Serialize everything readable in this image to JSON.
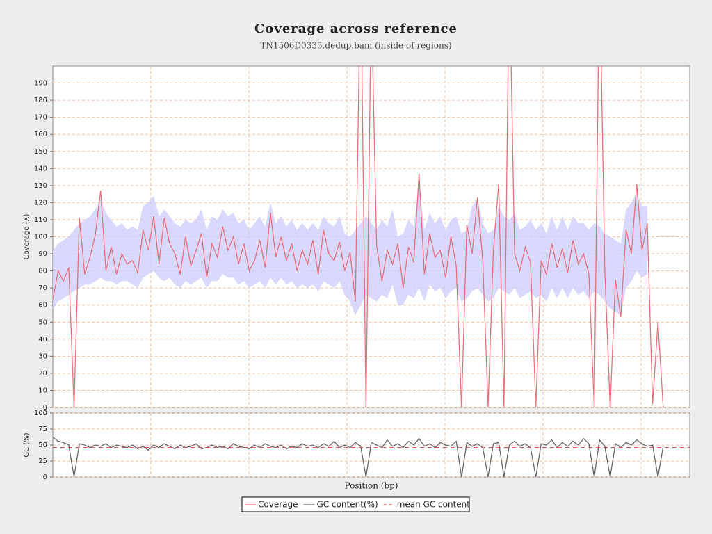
{
  "chart_data": [
    {
      "type": "line",
      "title": "Coverage across reference",
      "subtitle": "TN1506D0335.dedup.bam (inside of regions)",
      "ylabel": "Coverage (X)",
      "ylim": [
        0,
        200
      ],
      "yticks": [
        0,
        10,
        20,
        30,
        40,
        50,
        60,
        70,
        80,
        90,
        100,
        110,
        120,
        130,
        140,
        150,
        160,
        170,
        180,
        190
      ],
      "grid": true,
      "series": [
        {
          "name": "Coverage",
          "color": "#e8707a",
          "band_color": "#ccccff",
          "values": [
            63,
            80,
            74,
            82,
            0,
            111,
            78,
            88,
            101,
            127,
            80,
            94,
            78,
            90,
            84,
            86,
            79,
            104,
            92,
            112,
            84,
            111,
            96,
            90,
            78,
            100,
            83,
            92,
            102,
            76,
            96,
            88,
            106,
            92,
            100,
            84,
            96,
            80,
            86,
            98,
            82,
            114,
            88,
            100,
            86,
            96,
            80,
            92,
            84,
            98,
            78,
            104,
            90,
            86,
            97,
            80,
            91,
            62,
            260,
            0,
            240,
            95,
            74,
            92,
            84,
            96,
            70,
            94,
            85,
            137,
            78,
            102,
            88,
            92,
            76,
            100,
            83,
            0,
            107,
            90,
            123,
            86,
            0,
            92,
            131,
            0,
            260,
            90,
            80,
            94,
            85,
            0,
            86,
            78,
            96,
            82,
            93,
            79,
            98,
            84,
            90,
            78,
            0,
            260,
            80,
            0,
            75,
            53,
            104,
            90,
            131,
            92,
            108,
            2,
            50,
            0,
            null,
            null,
            null,
            null,
            null
          ],
          "band_lower": [
            58,
            62,
            64,
            66,
            68,
            70,
            72,
            72,
            74,
            76,
            74,
            74,
            72,
            74,
            74,
            72,
            70,
            76,
            78,
            80,
            76,
            74,
            76,
            72,
            70,
            74,
            72,
            74,
            76,
            70,
            74,
            74,
            78,
            76,
            76,
            72,
            74,
            70,
            72,
            74,
            70,
            76,
            72,
            76,
            72,
            74,
            70,
            72,
            70,
            72,
            68,
            74,
            72,
            70,
            74,
            66,
            62,
            54,
            60,
            66,
            64,
            62,
            66,
            64,
            72,
            60,
            60,
            66,
            64,
            70,
            62,
            72,
            68,
            70,
            64,
            68,
            70,
            62,
            64,
            68,
            70,
            66,
            62,
            64,
            70,
            68,
            66,
            70,
            64,
            66,
            68,
            64,
            66,
            62,
            70,
            64,
            70,
            64,
            70,
            66,
            68,
            64,
            68,
            66,
            62,
            58,
            56,
            54,
            70,
            74,
            80,
            76,
            78,
            null,
            null,
            null,
            null,
            null,
            null,
            null,
            null
          ],
          "band_upper": [
            92,
            96,
            98,
            100,
            104,
            108,
            110,
            112,
            116,
            122,
            114,
            110,
            106,
            108,
            104,
            106,
            104,
            118,
            120,
            124,
            112,
            116,
            112,
            108,
            106,
            110,
            108,
            110,
            116,
            104,
            112,
            110,
            116,
            112,
            114,
            108,
            110,
            104,
            108,
            112,
            106,
            120,
            108,
            112,
            106,
            110,
            104,
            108,
            104,
            108,
            104,
            112,
            108,
            106,
            112,
            102,
            100,
            104,
            108,
            112,
            108,
            104,
            110,
            106,
            116,
            100,
            102,
            110,
            106,
            130,
            104,
            114,
            108,
            112,
            104,
            110,
            112,
            102,
            104,
            118,
            122,
            108,
            102,
            104,
            118,
            112,
            110,
            114,
            104,
            106,
            110,
            104,
            108,
            102,
            112,
            104,
            112,
            104,
            112,
            108,
            108,
            104,
            108,
            106,
            102,
            100,
            98,
            96,
            116,
            120,
            126,
            118,
            118,
            null,
            null,
            null,
            null,
            null,
            null,
            null,
            null
          ]
        }
      ]
    },
    {
      "type": "line",
      "ylabel": "GC (%)",
      "xlabel": "Position (bp)",
      "ylim": [
        0,
        100
      ],
      "yticks": [
        0,
        25,
        50,
        75,
        100
      ],
      "grid": true,
      "series": [
        {
          "name": "GC content(%)",
          "color": "#666666",
          "values": [
            62,
            56,
            54,
            50,
            0,
            52,
            50,
            46,
            50,
            48,
            52,
            46,
            50,
            48,
            46,
            50,
            44,
            48,
            42,
            50,
            46,
            52,
            48,
            44,
            50,
            46,
            48,
            52,
            44,
            46,
            50,
            46,
            48,
            44,
            52,
            48,
            46,
            44,
            50,
            46,
            52,
            48,
            46,
            50,
            44,
            48,
            46,
            52,
            48,
            50,
            46,
            52,
            48,
            56,
            46,
            50,
            46,
            54,
            48,
            0,
            54,
            50,
            46,
            58,
            48,
            52,
            46,
            56,
            50,
            60,
            48,
            52,
            46,
            54,
            50,
            48,
            56,
            0,
            54,
            48,
            52,
            46,
            0,
            52,
            54,
            0,
            50,
            56,
            48,
            52,
            46,
            0,
            52,
            50,
            58,
            46,
            54,
            48,
            56,
            50,
            60,
            52,
            0,
            58,
            48,
            0,
            52,
            46,
            54,
            50,
            58,
            52,
            48,
            50,
            0,
            48,
            null,
            null,
            null,
            null,
            null
          ]
        }
      ],
      "mean_gc": {
        "name": "mean GC content",
        "value": 46,
        "color": "#e0404a"
      }
    }
  ]
}
